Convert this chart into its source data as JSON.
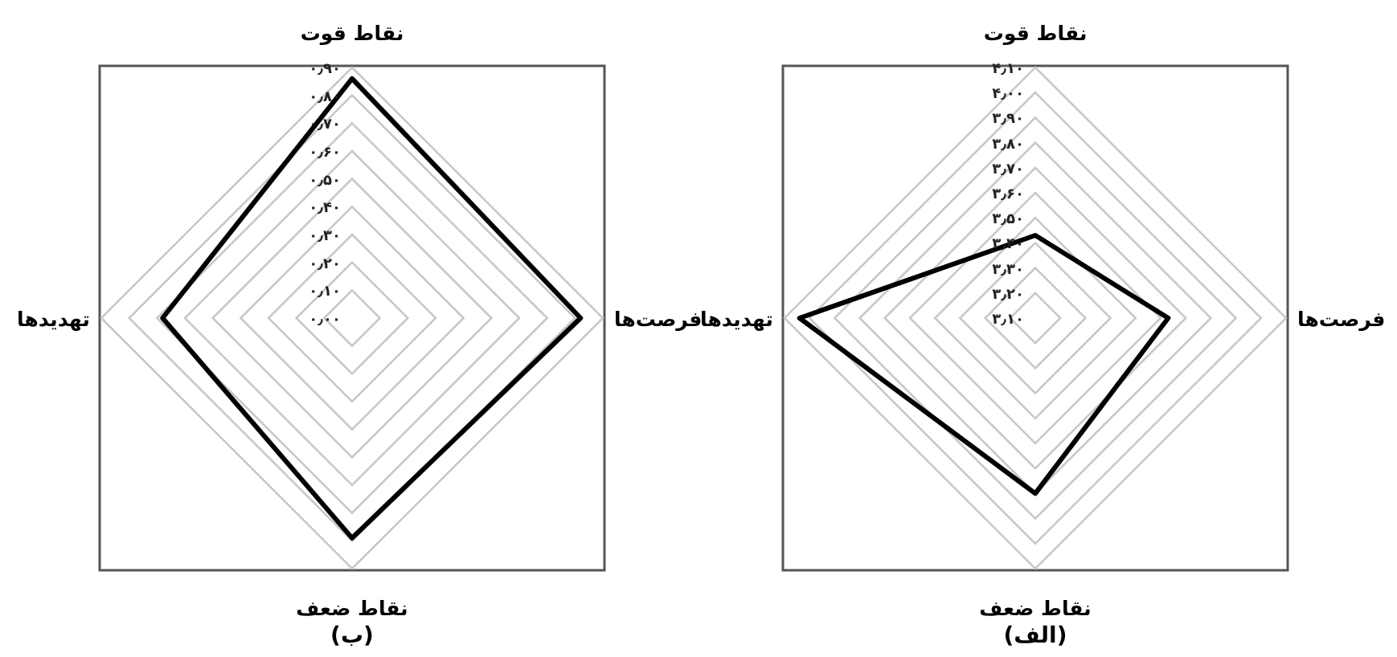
{
  "chart_data": [
    {
      "type": "radar",
      "categories": [
        "نقاط قوت",
        "فرصت‌ها",
        "نقاط ضعف",
        "تهدیدها"
      ],
      "series": [
        {
          "color": "#000000",
          "values": [
            3.43,
            3.63,
            3.8,
            4.04
          ]
        }
      ],
      "ylim": [
        3.1,
        4.1
      ],
      "yticks": [
        {
          "value": 3.1,
          "label": "۳٫۱۰"
        },
        {
          "value": 3.2,
          "label": "۳٫۲۰"
        },
        {
          "value": 3.3,
          "label": "۳٫۳۰"
        },
        {
          "value": 3.4,
          "label": "۳٫۴۰"
        },
        {
          "value": 3.5,
          "label": "۳٫۵۰"
        },
        {
          "value": 3.6,
          "label": "۳٫۶۰"
        },
        {
          "value": 3.7,
          "label": "۳٫۷۰"
        },
        {
          "value": 3.8,
          "label": "۳٫۸۰"
        },
        {
          "value": 3.9,
          "label": "۳٫۹۰"
        },
        {
          "value": 4.0,
          "label": "۴٫۰۰"
        },
        {
          "value": 4.1,
          "label": "۴٫۱۰"
        }
      ],
      "grid": true,
      "annotations": [
        "(الف)"
      ]
    },
    {
      "type": "radar",
      "categories": [
        "نقاط قوت",
        "فرصت‌ها",
        "نقاط ضعف",
        "تهدیدها"
      ],
      "series": [
        {
          "color": "#000000",
          "values": [
            0.86,
            0.82,
            0.79,
            0.68
          ]
        }
      ],
      "ylim": [
        0,
        0.9
      ],
      "yticks": [
        {
          "value": 0,
          "label": "۰٫۰۰"
        },
        {
          "value": 0.1,
          "label": "۰٫۱۰"
        },
        {
          "value": 0.2,
          "label": "۰٫۲۰"
        },
        {
          "value": 0.3,
          "label": "۰٫۳۰"
        },
        {
          "value": 0.4,
          "label": "۰٫۴۰"
        },
        {
          "value": 0.5,
          "label": "۰٫۵۰"
        },
        {
          "value": 0.6,
          "label": "۰٫۶۰"
        },
        {
          "value": 0.7,
          "label": "۰٫۷۰"
        },
        {
          "value": 0.8,
          "label": "۰٫۸۰"
        },
        {
          "value": 0.9,
          "label": "۰٫۹۰"
        }
      ],
      "grid": true,
      "annotations": [
        "(ب)"
      ]
    }
  ]
}
